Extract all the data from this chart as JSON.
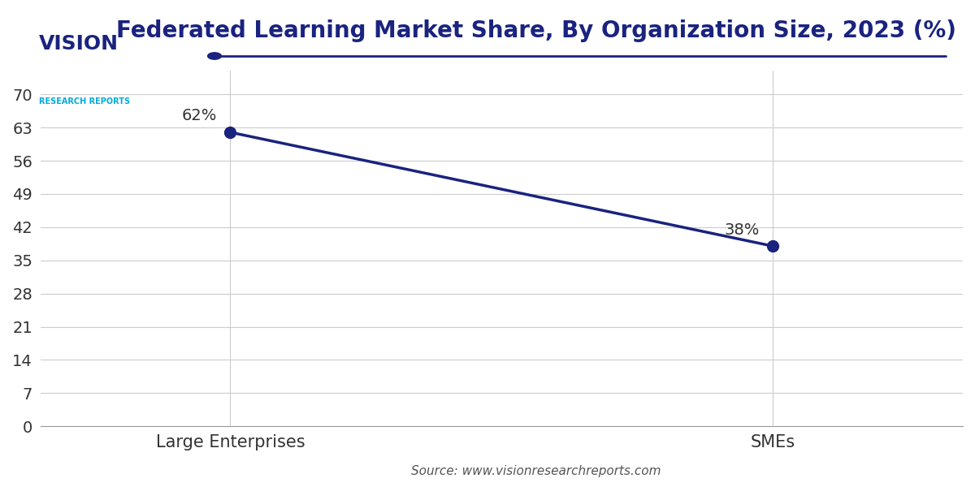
{
  "title": "Federated Learning Market Share, By Organization Size, 2023 (%)",
  "categories": [
    "Large Enterprises",
    "SMEs"
  ],
  "values": [
    62,
    38
  ],
  "annotations": [
    "62%",
    "38%"
  ],
  "line_color": "#1a237e",
  "marker_color": "#1a237e",
  "marker_size": 10,
  "line_width": 2.5,
  "yticks": [
    0,
    7,
    14,
    21,
    28,
    35,
    42,
    49,
    56,
    63,
    70
  ],
  "ylim": [
    0,
    75
  ],
  "source_text": "Source: www.visionresearchreports.com",
  "title_color": "#1a237e",
  "title_fontsize": 20,
  "tick_label_color": "#333333",
  "tick_fontsize": 14,
  "grid_color": "#cccccc",
  "background_color": "#ffffff",
  "separator_line_color": "#1a237e",
  "annotation_fontsize": 14,
  "annotation_color": "#333333",
  "source_fontsize": 11,
  "xtick_fontsize": 15,
  "logo_vision_color": "#1a237e",
  "logo_research_color": "#00aadd"
}
